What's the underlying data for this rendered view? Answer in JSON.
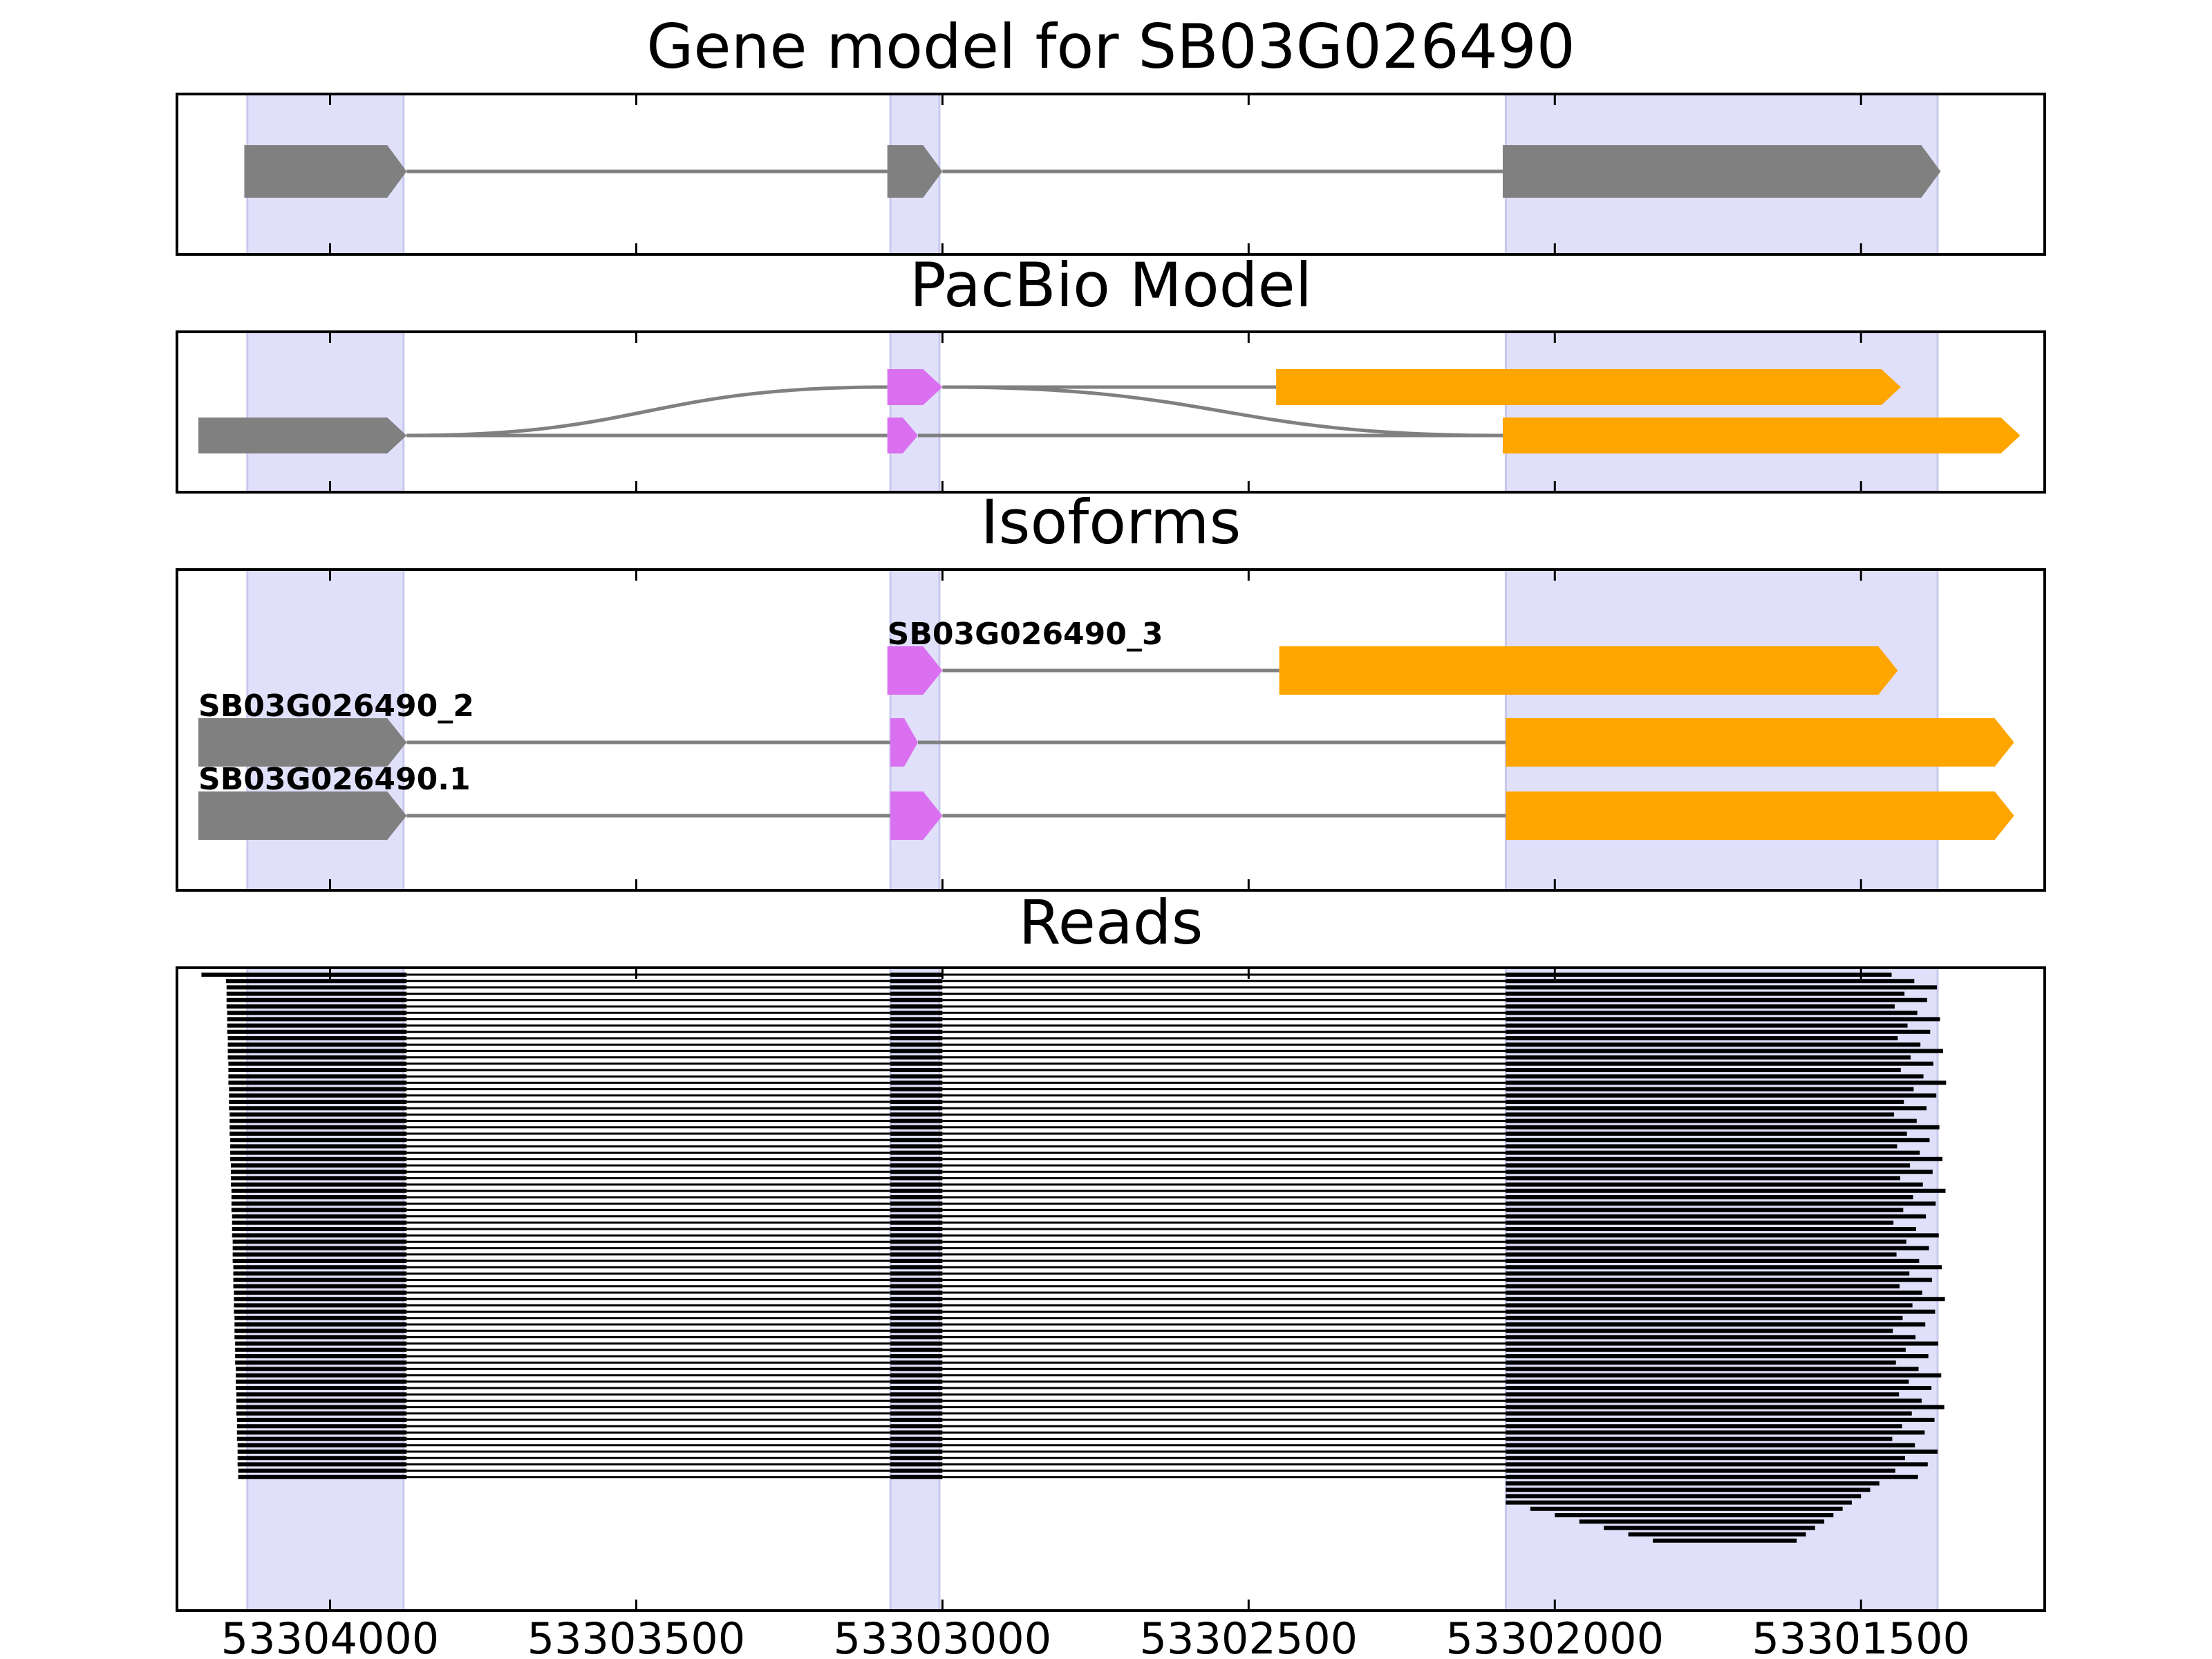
{
  "chart_data": {
    "type": "gene-track",
    "x_axis": {
      "direction": "reversed",
      "range": [
        53304250,
        53301200
      ],
      "ticks": [
        53304000,
        53303500,
        53303000,
        53302500,
        53302000,
        53301500
      ],
      "tick_labels": [
        "53304000",
        "53303500",
        "53303000",
        "53302500",
        "53302000",
        "53301500"
      ]
    },
    "colors": {
      "exon_gray": "#808080",
      "exon_violet": "#da70f0",
      "exon_orange": "#ffa500",
      "intron": "#808080",
      "highlight": "#e0e0fa",
      "read": "#000000"
    },
    "highlights": [
      [
        53304135,
        53303880
      ],
      [
        53303085,
        53303005
      ],
      [
        53302080,
        53301375
      ]
    ],
    "panels": [
      {
        "title": "Gene model for SB03G026490",
        "kind": "gene",
        "rows": [
          {
            "exons": [
              {
                "start": 53304140,
                "end": 53303875,
                "color": "gray"
              },
              {
                "start": 53303090,
                "end": 53303000,
                "color": "gray"
              },
              {
                "start": 53302085,
                "end": 53301370,
                "color": "gray"
              }
            ]
          }
        ]
      },
      {
        "title": "PacBio Model",
        "kind": "pacbio",
        "rows": [
          {
            "exons": [
              {
                "start": 53303090,
                "end": 53303000,
                "color": "violet"
              },
              {
                "start": 53302455,
                "end": 53301435,
                "color": "orange"
              }
            ]
          },
          {
            "exons": [
              {
                "start": 53304215,
                "end": 53303875,
                "color": "gray"
              },
              {
                "start": 53303090,
                "end": 53303040,
                "color": "violet"
              },
              {
                "start": 53302085,
                "end": 53301240,
                "color": "orange"
              }
            ]
          }
        ],
        "crossing_link": {
          "from": 53303875,
          "to": 53303090,
          "row_from": 1,
          "row_to": 0,
          "back_from": 53303000,
          "back_to": 53302085
        }
      },
      {
        "title": "Isoforms",
        "kind": "isoforms",
        "rows": [
          {
            "label": "SB03G026490_3",
            "exons": [
              {
                "start": 53303090,
                "end": 53303000,
                "color": "violet"
              },
              {
                "start": 53302450,
                "end": 53301440,
                "color": "orange"
              }
            ]
          },
          {
            "label": "SB03G026490_2",
            "exons": [
              {
                "start": 53304215,
                "end": 53303875,
                "color": "gray"
              },
              {
                "start": 53303085,
                "end": 53303040,
                "color": "violet"
              },
              {
                "start": 53302080,
                "end": 53301250,
                "color": "orange"
              }
            ]
          },
          {
            "label": "SB03G026490.1",
            "exons": [
              {
                "start": 53304215,
                "end": 53303875,
                "color": "gray"
              },
              {
                "start": 53303085,
                "end": 53303000,
                "color": "violet"
              },
              {
                "start": 53302080,
                "end": 53301250,
                "color": "orange"
              }
            ]
          }
        ]
      },
      {
        "title": "Reads",
        "kind": "reads",
        "read_count": 80
      }
    ]
  }
}
